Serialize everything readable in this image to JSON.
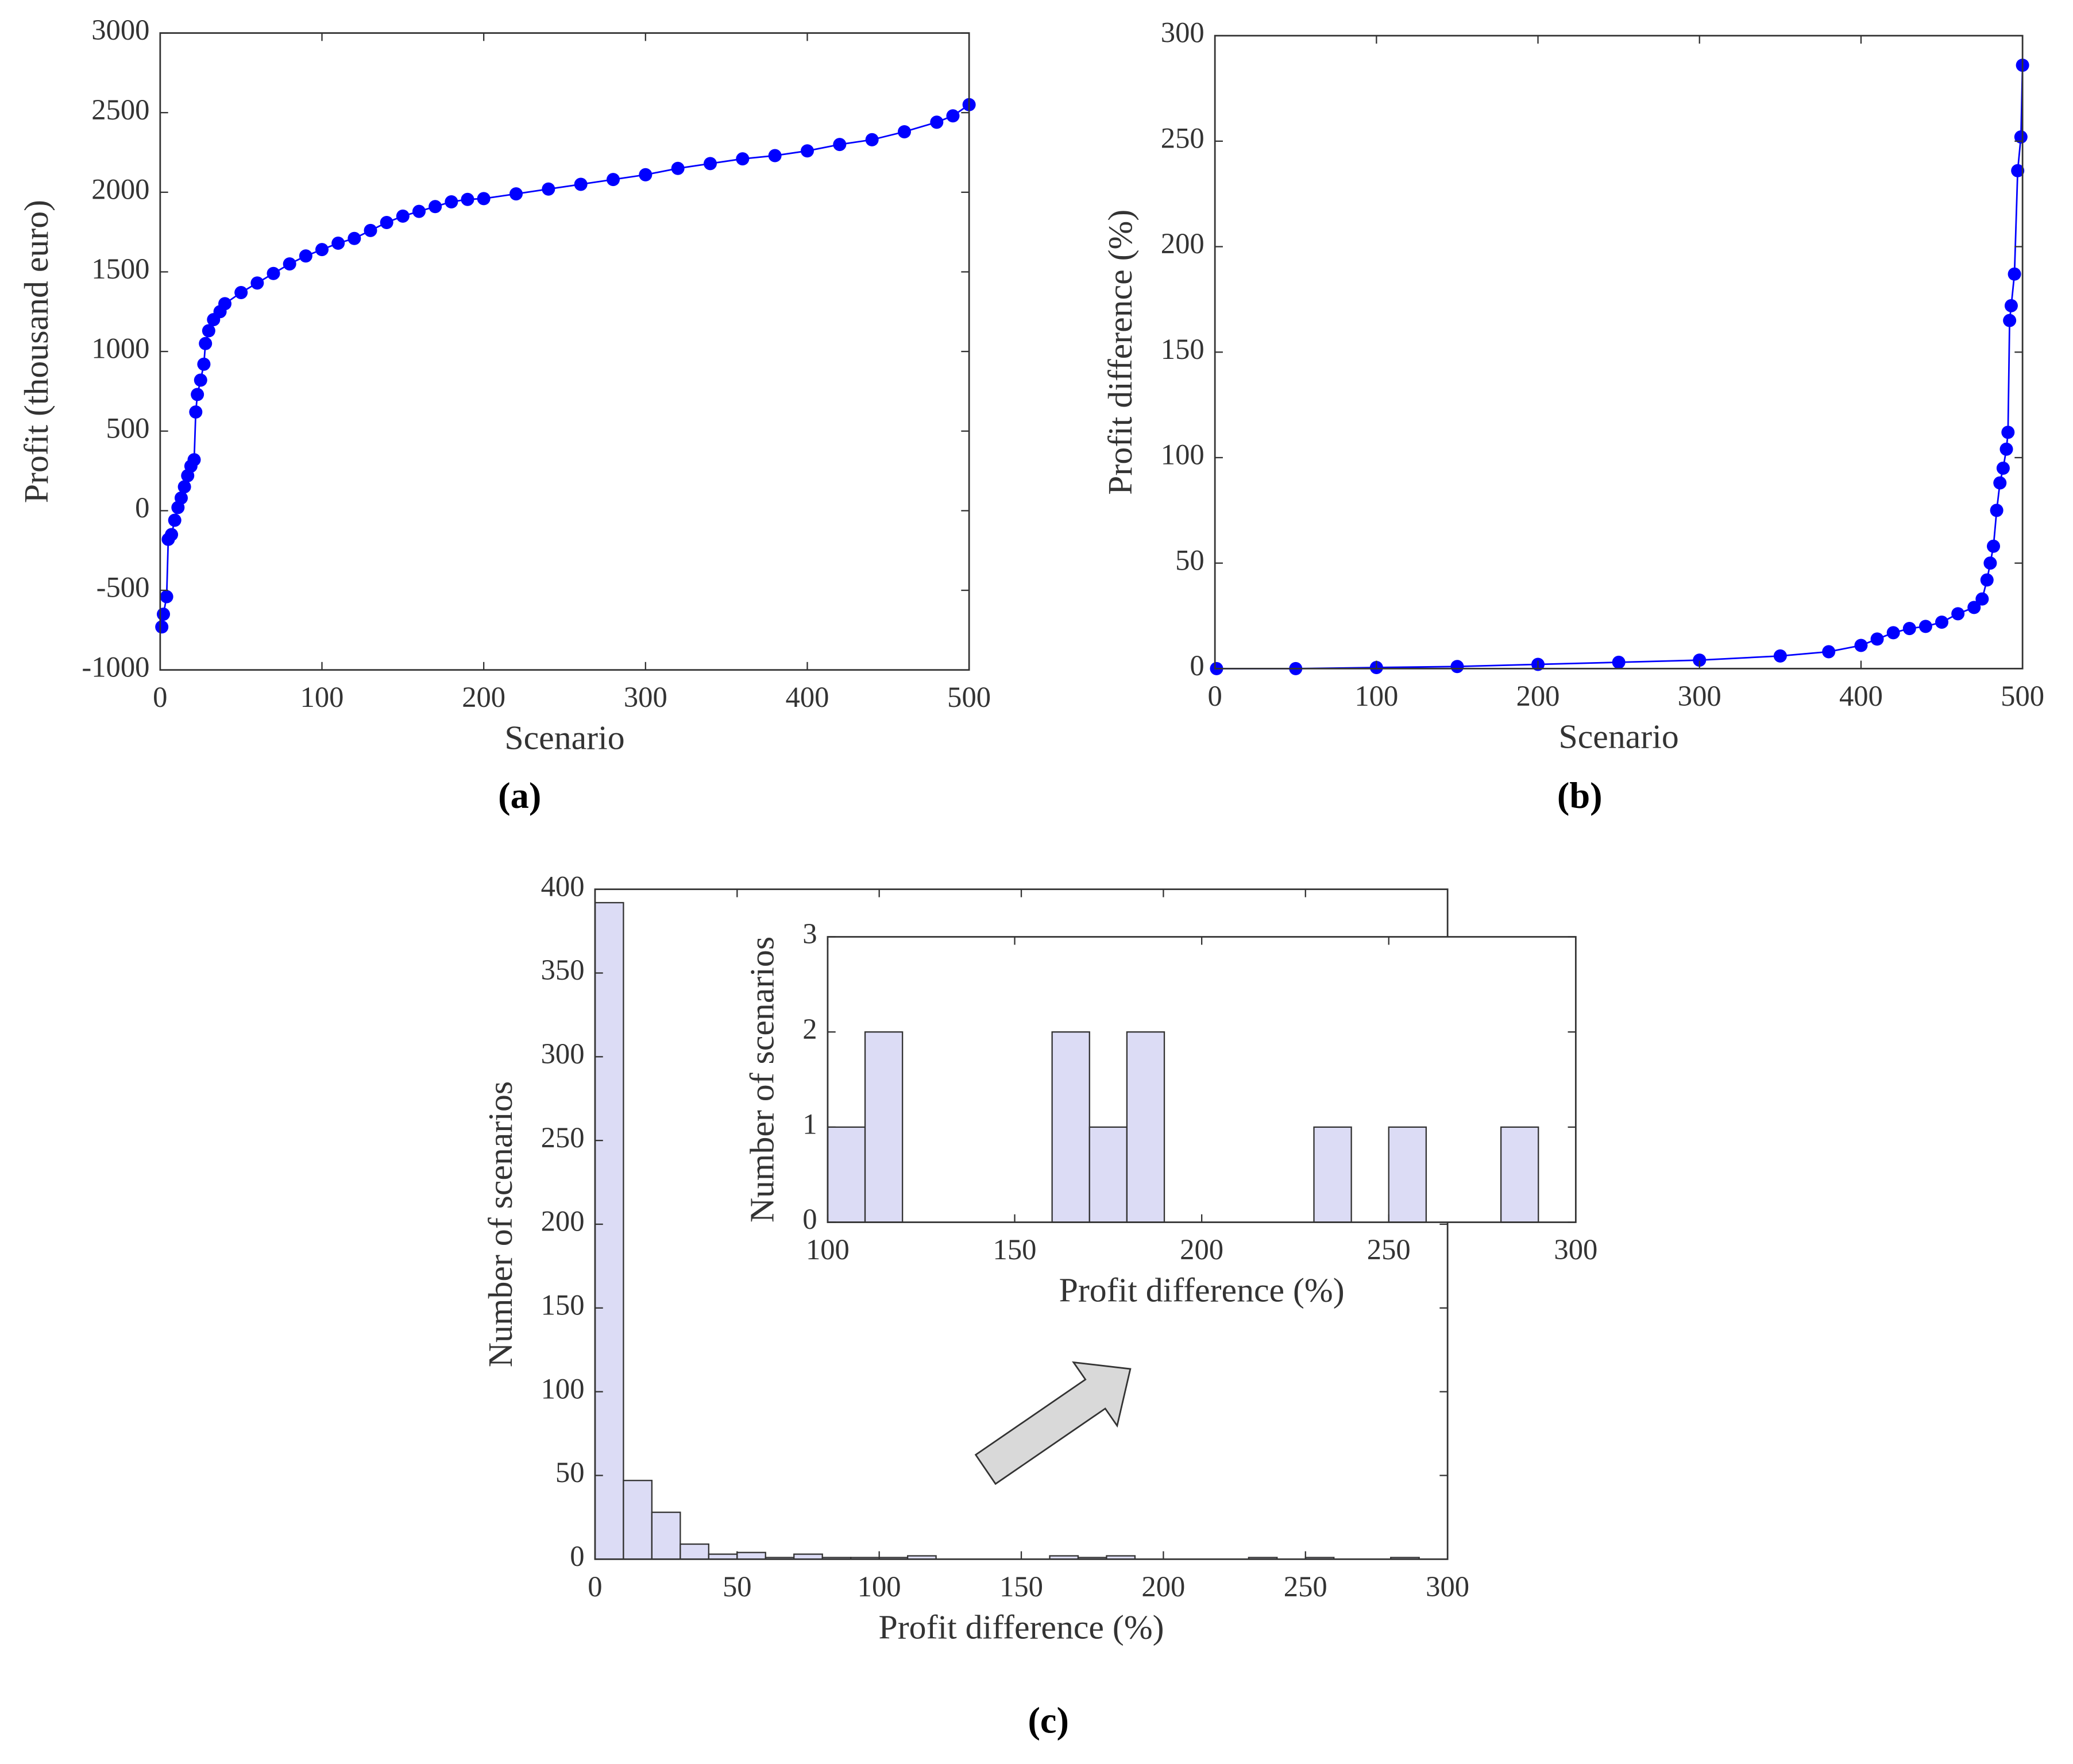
{
  "chart_data": [
    {
      "type": "line",
      "label": "(a)",
      "x_label": "Scenario",
      "y_label": "Profit (thousand euro)",
      "color": "#0000ff",
      "x": [
        1,
        2,
        4,
        5,
        7,
        9,
        11,
        13,
        15,
        17,
        19,
        21,
        22,
        23,
        25,
        27,
        28,
        30,
        33,
        37,
        40,
        50,
        60,
        70,
        80,
        90,
        100,
        110,
        120,
        130,
        140,
        150,
        160,
        170,
        180,
        190,
        200,
        220,
        240,
        260,
        280,
        300,
        320,
        340,
        360,
        380,
        400,
        420,
        440,
        460,
        480,
        490,
        500
      ],
      "values": [
        -730,
        -650,
        -540,
        -180,
        -150,
        -60,
        20,
        80,
        150,
        220,
        280,
        320,
        620,
        730,
        820,
        920,
        1050,
        1130,
        1200,
        1250,
        1300,
        1370,
        1430,
        1490,
        1550,
        1600,
        1640,
        1680,
        1710,
        1760,
        1810,
        1850,
        1880,
        1910,
        1940,
        1955,
        1960,
        1990,
        2020,
        2050,
        2080,
        2110,
        2150,
        2180,
        2210,
        2230,
        2260,
        2300,
        2330,
        2380,
        2440,
        2480,
        2550
      ],
      "xlim": [
        0,
        500
      ],
      "xticks": [
        0,
        100,
        200,
        300,
        400,
        500
      ],
      "ylim": [
        -1000,
        3000
      ],
      "yticks": [
        -1000,
        -500,
        0,
        500,
        1000,
        1500,
        2000,
        2500,
        3000
      ]
    },
    {
      "type": "line",
      "label": "(b)",
      "x_label": "Scenario",
      "y_label": "Profit difference (%)",
      "color": "#0000ff",
      "x": [
        1,
        50,
        100,
        150,
        200,
        250,
        300,
        350,
        380,
        400,
        410,
        420,
        430,
        440,
        450,
        460,
        470,
        475,
        478,
        480,
        482,
        484,
        486,
        488,
        490,
        491,
        492,
        493,
        495,
        497,
        499,
        500
      ],
      "values": [
        0,
        0,
        0.5,
        1,
        2,
        3,
        4,
        6,
        8,
        11,
        14,
        17,
        19,
        20,
        22,
        26,
        29,
        33,
        42,
        50,
        58,
        75,
        88,
        95,
        104,
        112,
        165,
        172,
        187,
        236,
        252,
        286
      ],
      "xlim": [
        0,
        500
      ],
      "xticks": [
        0,
        100,
        200,
        300,
        400,
        500
      ],
      "ylim": [
        0,
        300
      ],
      "yticks": [
        0,
        50,
        100,
        150,
        200,
        250,
        300
      ]
    },
    {
      "type": "histogram",
      "label": "(c)",
      "x_label": "Profit difference (%)",
      "y_label": "Number of scenarios",
      "color": "#dcdcf5",
      "bins": [
        0,
        10,
        20,
        30,
        40,
        50,
        60,
        70,
        80,
        90,
        100,
        110,
        120,
        130,
        140,
        150,
        160,
        170,
        180,
        190,
        200,
        210,
        220,
        230,
        240,
        250,
        260,
        270,
        280,
        290,
        300
      ],
      "counts": [
        392,
        47,
        28,
        9,
        3,
        4,
        1,
        3,
        1,
        1,
        1,
        2,
        0,
        0,
        0,
        0,
        2,
        1,
        2,
        0,
        0,
        0,
        0,
        1,
        0,
        1,
        0,
        0,
        1,
        0
      ],
      "xlim": [
        0,
        300
      ],
      "xticks": [
        0,
        50,
        100,
        150,
        200,
        250,
        300
      ],
      "ylim": [
        0,
        400
      ],
      "yticks": [
        0,
        50,
        100,
        150,
        200,
        250,
        300,
        350,
        400
      ]
    },
    {
      "type": "histogram",
      "x_label": "Profit difference (%)",
      "y_label": "Number of scenarios",
      "color": "#dcdcf5",
      "bins": [
        100,
        110,
        120,
        130,
        140,
        150,
        160,
        170,
        180,
        190,
        200,
        210,
        220,
        230,
        240,
        250,
        260,
        270,
        280,
        290,
        300
      ],
      "counts": [
        1,
        2,
        0,
        0,
        0,
        0,
        2,
        1,
        2,
        0,
        0,
        0,
        0,
        1,
        0,
        1,
        0,
        0,
        1,
        0
      ],
      "xlim": [
        100,
        300
      ],
      "xticks": [
        100,
        150,
        200,
        250,
        300
      ],
      "ylim": [
        0,
        3
      ],
      "yticks": [
        0,
        1,
        2,
        3
      ]
    }
  ]
}
